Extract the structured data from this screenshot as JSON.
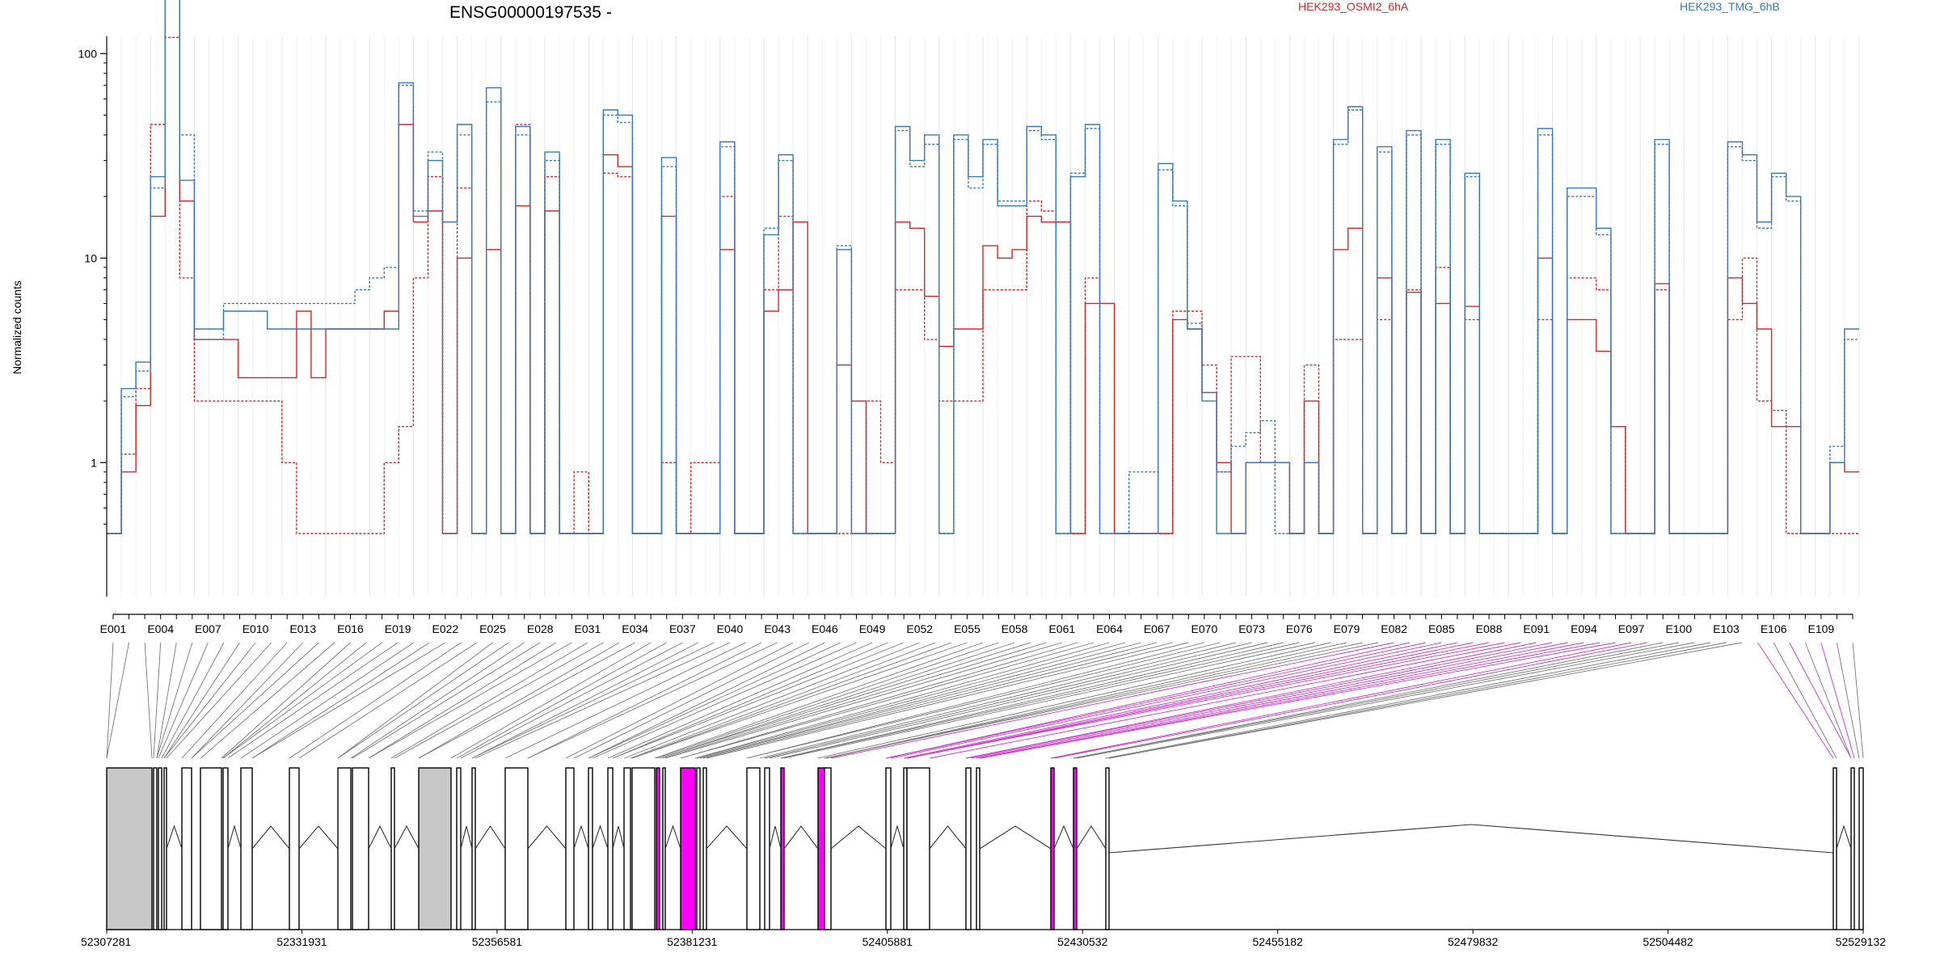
{
  "chart_data": {
    "type": "line",
    "title": "ENSG00000197535 -",
    "ylabel": "Normalized counts",
    "yscale": "log",
    "ylim": [
      0.45,
      450
    ],
    "ytick_labels": [
      "1",
      "10",
      "100"
    ],
    "legend": [
      {
        "name": "HEK293_OSMI2_6hA",
        "color": "#d62728"
      },
      {
        "name": "HEK293_TMG_6hB",
        "color": "#3a78b5"
      }
    ],
    "exon_labels": [
      "E001",
      "E004",
      "E007",
      "E010",
      "E013",
      "E016",
      "E019",
      "E022",
      "E025",
      "E028",
      "E031",
      "E034",
      "E037",
      "E040",
      "E043",
      "E046",
      "E049",
      "E052",
      "E055",
      "E058",
      "E061",
      "E064",
      "E067",
      "E070",
      "E073",
      "E076",
      "E079",
      "E082",
      "E085",
      "E088",
      "E091",
      "E094",
      "E097",
      "E100",
      "E103",
      "E106",
      "E109"
    ],
    "genomic_ticks": [
      "52307281",
      "52331931",
      "52356581",
      "52381231",
      "52405881",
      "52430532",
      "52455182",
      "52479832",
      "52504482",
      "52529132"
    ],
    "series": [
      {
        "name": "HEK293_OSMI2_6hA",
        "style": "solid",
        "values": [
          0.45,
          0.9,
          1.9,
          16,
          300,
          19,
          4,
          4,
          4,
          2.6,
          2.6,
          2.6,
          2.6,
          5.5,
          2.6,
          4.5,
          4.5,
          4.5,
          4.5,
          5.5,
          45,
          15,
          17,
          0.45,
          10,
          0.45,
          11,
          0.45,
          18,
          0.45,
          17,
          0.45,
          0.45,
          0.45,
          32,
          28,
          0.45,
          0.45,
          16,
          0.45,
          0.45,
          0.45,
          11,
          0.45,
          0.45,
          5.5,
          7,
          15,
          0.45,
          0.45,
          3,
          2,
          0.45,
          0.45,
          15,
          14,
          6.5,
          3.7,
          4.5,
          4.5,
          11.5,
          10,
          11,
          16,
          15,
          15,
          0.45,
          6,
          6,
          0.45,
          0.45,
          0.45,
          0.45,
          5,
          4.5,
          2.2,
          1,
          0.45,
          1,
          1,
          1,
          0.45,
          2,
          0.45,
          11,
          14,
          0.45,
          8,
          0.45,
          6.8,
          0.45,
          6,
          0.45,
          5.8,
          0.45,
          0.45,
          0.45,
          0.45,
          10,
          0.45,
          5,
          5,
          3.5,
          1.5,
          0.45,
          0.45,
          7.5,
          0.45,
          0.45,
          0.45,
          0.45,
          8,
          6,
          4.5,
          1.5,
          1.5,
          0.45,
          0.45,
          1,
          0.9
        ]
      },
      {
        "name": "HEK293_OSMI2_6hA",
        "style": "dashed",
        "values": [
          0.45,
          1.1,
          2.3,
          45,
          120,
          8,
          2,
          2,
          2,
          2,
          2,
          2,
          1,
          0.45,
          0.45,
          0.45,
          0.45,
          0.45,
          0.45,
          1,
          1.5,
          8,
          25,
          0.45,
          22,
          0.45,
          11,
          0.45,
          45,
          0.45,
          25,
          0.45,
          0.9,
          0.45,
          26,
          25,
          0.45,
          0.45,
          1,
          0.45,
          1,
          1,
          20,
          0.45,
          0.45,
          7,
          16,
          0.45,
          0.45,
          0.45,
          0.45,
          0.45,
          2,
          1,
          7,
          7,
          4,
          2,
          2,
          2,
          7,
          7,
          7,
          19,
          17,
          15,
          0.45,
          8,
          6,
          0.45,
          0.45,
          0.45,
          0.45,
          5.5,
          5.5,
          3,
          0.9,
          3.3,
          3.3,
          1,
          1,
          0.45,
          3,
          0.45,
          4,
          4,
          0.45,
          5,
          0.45,
          7,
          0.45,
          9,
          0.45,
          5,
          0.45,
          0.45,
          0.45,
          0.45,
          5,
          0.45,
          8,
          8,
          7,
          1.5,
          0.45,
          0.45,
          7,
          0.45,
          0.45,
          0.45,
          0.45,
          5,
          10,
          2,
          1.8,
          0.45,
          0.45,
          0.45,
          0.45,
          0.45
        ]
      },
      {
        "name": "HEK293_TMG_6hB",
        "style": "solid",
        "values": [
          0.45,
          2.3,
          3.1,
          25,
          360,
          24,
          4.5,
          4.5,
          5.5,
          5.5,
          5.5,
          4.5,
          4.5,
          4.5,
          4.5,
          4.5,
          4.5,
          4.5,
          4.5,
          4.5,
          72,
          16,
          30,
          15,
          45,
          0.45,
          68,
          0.45,
          44,
          0.45,
          33,
          0.45,
          0.45,
          0.45,
          53,
          50,
          0.45,
          0.45,
          31,
          0.45,
          0.45,
          0.45,
          37,
          0.45,
          0.45,
          13,
          32,
          0.45,
          0.45,
          0.45,
          11,
          0.45,
          0.45,
          0.45,
          44,
          30,
          40,
          0.45,
          40,
          25,
          38,
          18,
          18,
          44,
          40,
          0.45,
          25,
          45,
          0.45,
          0.45,
          0.45,
          0.45,
          29,
          19,
          4.5,
          2,
          0.45,
          0.45,
          1,
          1,
          1,
          0.45,
          1,
          0.45,
          38,
          55,
          0.45,
          35,
          0.45,
          42,
          0.45,
          38,
          0.45,
          26,
          0.45,
          0.45,
          0.45,
          0.45,
          43,
          0.45,
          22,
          22,
          14,
          0.45,
          0.45,
          0.45,
          38,
          0.45,
          0.45,
          0.45,
          0.45,
          37,
          32,
          15,
          26,
          20,
          0.45,
          0.45,
          1,
          4.5
        ]
      },
      {
        "name": "HEK293_TMG_6hB",
        "style": "dashed",
        "values": [
          0.45,
          2.1,
          2.8,
          22,
          220,
          40,
          4,
          4,
          6,
          6,
          6,
          6,
          6,
          6,
          6,
          6,
          6,
          7,
          8,
          9,
          70,
          17,
          33,
          0.45,
          40,
          0.45,
          58,
          0.45,
          40,
          0.45,
          30,
          0.45,
          0.45,
          0.45,
          50,
          46,
          0.45,
          0.45,
          28,
          0.45,
          0.45,
          0.45,
          35,
          0.45,
          0.45,
          14,
          30,
          0.45,
          0.45,
          0.45,
          11.5,
          0.45,
          0.45,
          0.45,
          42,
          28,
          36,
          0.45,
          38,
          22,
          36,
          19,
          19,
          42,
          38,
          0.45,
          26,
          43,
          0.45,
          0.45,
          0.9,
          0.9,
          27,
          18,
          4.8,
          2.2,
          0.9,
          1.2,
          1.4,
          1.6,
          0.45,
          0.45,
          1,
          0.45,
          36,
          53,
          0.45,
          33,
          0.45,
          40,
          0.45,
          36,
          0.45,
          25,
          0.45,
          0.45,
          0.45,
          0.45,
          40,
          0.45,
          20,
          20,
          13,
          0.45,
          0.45,
          0.45,
          36,
          0.45,
          0.45,
          0.45,
          0.45,
          35,
          30,
          14,
          25,
          19,
          0.45,
          0.45,
          1.2,
          4
        ]
      }
    ]
  }
}
